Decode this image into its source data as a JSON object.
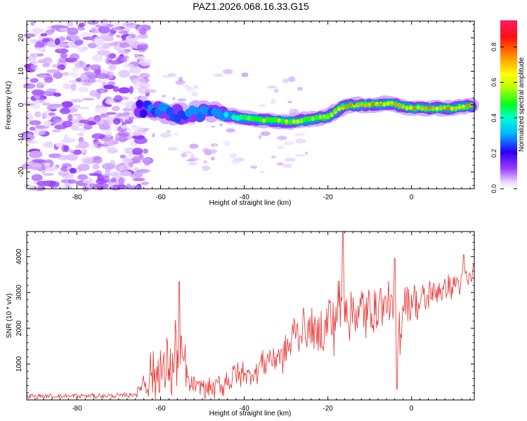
{
  "figure": {
    "title": "PAZ1.2026.068.16.33.G15"
  },
  "chart_data": [
    {
      "type": "heatmap",
      "name": "spectrogram",
      "xlabel": "Height of straight line (km)",
      "ylabel": "Frequency (Hz)",
      "xlim": [
        -92,
        15
      ],
      "ylim": [
        -25,
        25
      ],
      "xticks": [
        -80,
        -60,
        -40,
        -20,
        0
      ],
      "yticks": [
        -20,
        -10,
        0,
        10,
        20
      ],
      "colorbar": {
        "label": "Normalized spectral amplitude",
        "range": [
          0,
          0.95
        ],
        "ticks": [
          "0.0",
          "0.2",
          "0.4",
          "0.6",
          "0.8"
        ]
      },
      "ridge": {
        "height_km": [
          -65,
          -60,
          -55,
          -50,
          -45,
          -40,
          -35,
          -30,
          -25,
          -20,
          -17,
          -15,
          -10,
          -5,
          0,
          5,
          10,
          15
        ],
        "frequency_hz": [
          -1,
          -2,
          -3,
          -2,
          -3,
          -4,
          -4.5,
          -5,
          -4.5,
          -3.5,
          -1,
          0,
          0,
          0.5,
          -1,
          -1,
          -1,
          0
        ],
        "amplitude": [
          0.25,
          0.3,
          0.3,
          0.3,
          0.35,
          0.5,
          0.6,
          0.65,
          0.6,
          0.6,
          0.7,
          0.75,
          0.8,
          0.7,
          0.7,
          0.75,
          0.7,
          0.8
        ]
      },
      "noise_region_km": [
        -92,
        -65
      ]
    },
    {
      "type": "line",
      "name": "snr",
      "xlabel": "Height of straight line (km)",
      "ylabel": "SNR (10 * v/v)",
      "xlim": [
        -92,
        15
      ],
      "ylim": [
        0,
        4700
      ],
      "xticks": [
        -80,
        -60,
        -40,
        -20,
        0
      ],
      "yticks": [
        1000,
        2000,
        3000,
        4000
      ],
      "color": "#e8312e",
      "envelope": {
        "x": [
          -92,
          -70,
          -66,
          -64,
          -62,
          -60,
          -58,
          -56,
          -55,
          -53,
          -50,
          -48,
          -45,
          -42,
          -40,
          -38,
          -35,
          -32,
          -30,
          -28,
          -25,
          -22,
          -20,
          -18,
          -16.5,
          -15,
          -12,
          -10,
          -8,
          -6,
          -4,
          -3.5,
          -3,
          -2,
          0,
          2,
          5,
          8,
          10,
          12,
          15
        ],
        "mean": [
          100,
          120,
          150,
          500,
          700,
          800,
          900,
          1100,
          1200,
          400,
          350,
          300,
          450,
          700,
          750,
          700,
          1100,
          1200,
          1300,
          1900,
          2000,
          1800,
          2200,
          2300,
          2800,
          2500,
          2400,
          2500,
          2600,
          2700,
          2500,
          1000,
          2000,
          2700,
          2800,
          2700,
          3000,
          3100,
          3200,
          3300,
          3500
        ],
        "amp": [
          60,
          60,
          80,
          300,
          700,
          900,
          700,
          1200,
          900,
          250,
          250,
          250,
          300,
          400,
          350,
          300,
          350,
          400,
          450,
          500,
          450,
          600,
          700,
          900,
          900,
          700,
          800,
          800,
          600,
          500,
          600,
          500,
          900,
          500,
          500,
          400,
          400,
          350,
          300,
          300,
          300
        ]
      },
      "peaks": [
        {
          "x": -55.5,
          "y": 3300
        },
        {
          "x": -16.5,
          "y": 4700
        },
        {
          "x": -4,
          "y": 3950
        },
        {
          "x": -3.5,
          "y": 300
        },
        {
          "x": 12.5,
          "y": 4050
        }
      ]
    }
  ]
}
